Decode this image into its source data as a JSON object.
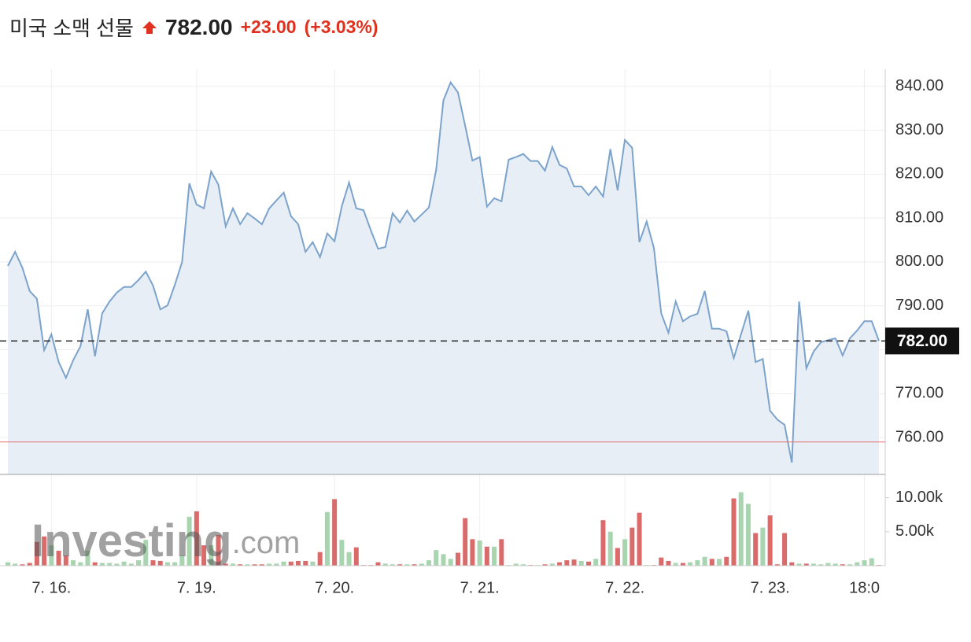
{
  "chart_data": [
    {
      "type": "line",
      "title": "미국 소맥 선물",
      "price": {
        "value": 782,
        "label": "782.00"
      },
      "change": {
        "value": 23,
        "label": "+23.00"
      },
      "change_pct": {
        "value": 3.03,
        "label": "(+3.03%)"
      },
      "categories": [
        null,
        null,
        null,
        null,
        null,
        null,
        "7. 16.",
        null,
        null,
        null,
        null,
        null,
        null,
        null,
        null,
        null,
        null,
        null,
        null,
        null,
        null,
        null,
        null,
        null,
        null,
        null,
        "7. 19.",
        null,
        null,
        null,
        null,
        null,
        null,
        null,
        null,
        null,
        null,
        null,
        null,
        null,
        null,
        null,
        null,
        null,
        null,
        "7. 20.",
        null,
        null,
        null,
        null,
        null,
        null,
        null,
        null,
        null,
        null,
        null,
        null,
        null,
        null,
        null,
        null,
        null,
        null,
        null,
        "7. 21.",
        null,
        null,
        null,
        null,
        null,
        null,
        null,
        null,
        null,
        null,
        null,
        null,
        null,
        null,
        null,
        null,
        null,
        null,
        null,
        "7. 22.",
        null,
        null,
        null,
        null,
        null,
        null,
        null,
        null,
        null,
        null,
        null,
        null,
        null,
        null,
        null,
        null,
        null,
        null,
        null,
        "7. 23.",
        null,
        null,
        null,
        null,
        null,
        null,
        null,
        null,
        null,
        null,
        null,
        null,
        "18:0",
        null,
        null
      ],
      "values": [
        799.1,
        802.3,
        798.7,
        793.4,
        791.6,
        779.9,
        783.5,
        777.2,
        773.6,
        777.6,
        780.8,
        789.2,
        778.5,
        788.3,
        791.0,
        793.0,
        794.3,
        794.3,
        795.9,
        797.8,
        794.6,
        789.2,
        790.1,
        794.8,
        800.0,
        817.9,
        813.1,
        812.2,
        820.6,
        817.6,
        808.1,
        812.2,
        808.6,
        811.1,
        809.9,
        808.6,
        812.2,
        814.0,
        815.8,
        810.4,
        808.6,
        802.3,
        804.5,
        801.1,
        806.5,
        804.7,
        812.7,
        818.1,
        812.2,
        811.8,
        807.2,
        803.0,
        803.4,
        811.1,
        809.0,
        811.7,
        809.2,
        810.8,
        812.4,
        821.0,
        836.8,
        840.9,
        838.6,
        831.0,
        823.1,
        823.9,
        812.6,
        814.5,
        813.8,
        823.3,
        823.9,
        824.6,
        823.0,
        823.0,
        820.8,
        826.2,
        822.1,
        821.3,
        817.2,
        817.2,
        815.2,
        817.2,
        814.9,
        825.7,
        816.3,
        827.8,
        826.0,
        804.5,
        809.2,
        803.2,
        788.3,
        783.9,
        791.0,
        786.5,
        787.6,
        788.2,
        793.4,
        784.8,
        784.8,
        784.2,
        778.1,
        783.5,
        788.9,
        777.2,
        777.9,
        766.1,
        764.1,
        762.9,
        754.3,
        791.0,
        775.8,
        779.6,
        781.7,
        782.2,
        782.6,
        778.7,
        782.6,
        784.4,
        786.5,
        786.5,
        782.0
      ],
      "color": "#7ba3cc",
      "prev_close": 759,
      "ylim": [
        751.6,
        843.9
      ],
      "yticks": [
        {
          "value": 760,
          "label": "760.00"
        },
        {
          "value": 770,
          "label": "770.00"
        },
        {
          "value": 780,
          "label": "780.00"
        },
        {
          "value": 790,
          "label": "790.00"
        },
        {
          "value": 800,
          "label": "800.00"
        },
        {
          "value": 810,
          "label": "810.00"
        },
        {
          "value": 820,
          "label": "820.00"
        },
        {
          "value": 830,
          "label": "830.00"
        },
        {
          "value": 840,
          "label": "840.00"
        }
      ],
      "grid": true
    },
    {
      "type": "bar",
      "values": [
        500,
        300,
        200,
        400,
        3500,
        4300,
        3000,
        2200,
        1500,
        800,
        500,
        2200,
        500,
        400,
        400,
        300,
        600,
        300,
        800,
        3800,
        800,
        700,
        500,
        500,
        1500,
        7200,
        8000,
        3000,
        3000,
        4500,
        300,
        300,
        200,
        200,
        200,
        200,
        300,
        300,
        600,
        600,
        700,
        700,
        600,
        2000,
        7900,
        9800,
        3800,
        2000,
        2700,
        100,
        100,
        500,
        300,
        200,
        200,
        200,
        200,
        300,
        800,
        2300,
        1700,
        1000,
        1900,
        7000,
        3900,
        3700,
        2800,
        2800,
        3900,
        100,
        300,
        200,
        100,
        100,
        200,
        300,
        500,
        800,
        900,
        700,
        600,
        1000,
        6700,
        5000,
        2600,
        3900,
        5600,
        7800,
        100,
        100,
        1200,
        700,
        400,
        400,
        500,
        800,
        1300,
        1000,
        1000,
        1300,
        9900,
        10800,
        9100,
        4800,
        5600,
        7400,
        200,
        4800,
        500,
        300,
        300,
        300,
        200,
        400,
        300,
        200,
        200,
        500,
        800,
        1100,
        100
      ],
      "up_color": "#a8d5b0",
      "down_color": "#d96b6b",
      "ylim": [
        0,
        13200
      ],
      "yticks": [
        {
          "value": 5000,
          "label": "5.00k"
        },
        {
          "value": 10000,
          "label": "10.00k"
        }
      ],
      "watermark": "Investing",
      "watermark_suffix": ".com"
    }
  ]
}
